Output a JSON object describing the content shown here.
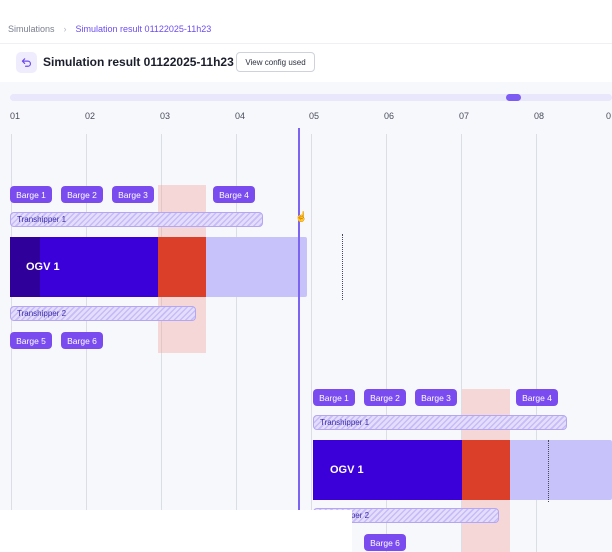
{
  "breadcrumb": {
    "root": "Simulations",
    "current": "Simulation result 01122025-11h23"
  },
  "header": {
    "title": "Simulation result 01122025-11h23",
    "config_button": "View config used"
  },
  "timeline": {
    "ticks": [
      "01",
      "02",
      "03",
      "04",
      "05",
      "06",
      "07",
      "08",
      "0"
    ],
    "colors": {
      "ogv": "#3b00d9",
      "berth": "#db3f2a",
      "barge": "#7a4cf0",
      "now_line": "#7b64f2"
    },
    "scenario1": {
      "barges_top": [
        "Barge 1",
        "Barge 2",
        "Barge 3",
        "Barge 4"
      ],
      "transhipper_1": "Transhipper 1",
      "ogv": "OGV 1",
      "transhipper_2": "Transhipper  2",
      "barges_bottom": [
        "Barge 5",
        "Barge 6"
      ]
    },
    "scenario2": {
      "barges_top": [
        "Barge 1",
        "Barge 2",
        "Barge 3",
        "Barge 4"
      ],
      "transhipper_1": "Transhipper 1",
      "ogv": "OGV 1",
      "transhipper_2": "Transhipper  2",
      "barges_bottom": [
        "Barge 6"
      ]
    }
  }
}
